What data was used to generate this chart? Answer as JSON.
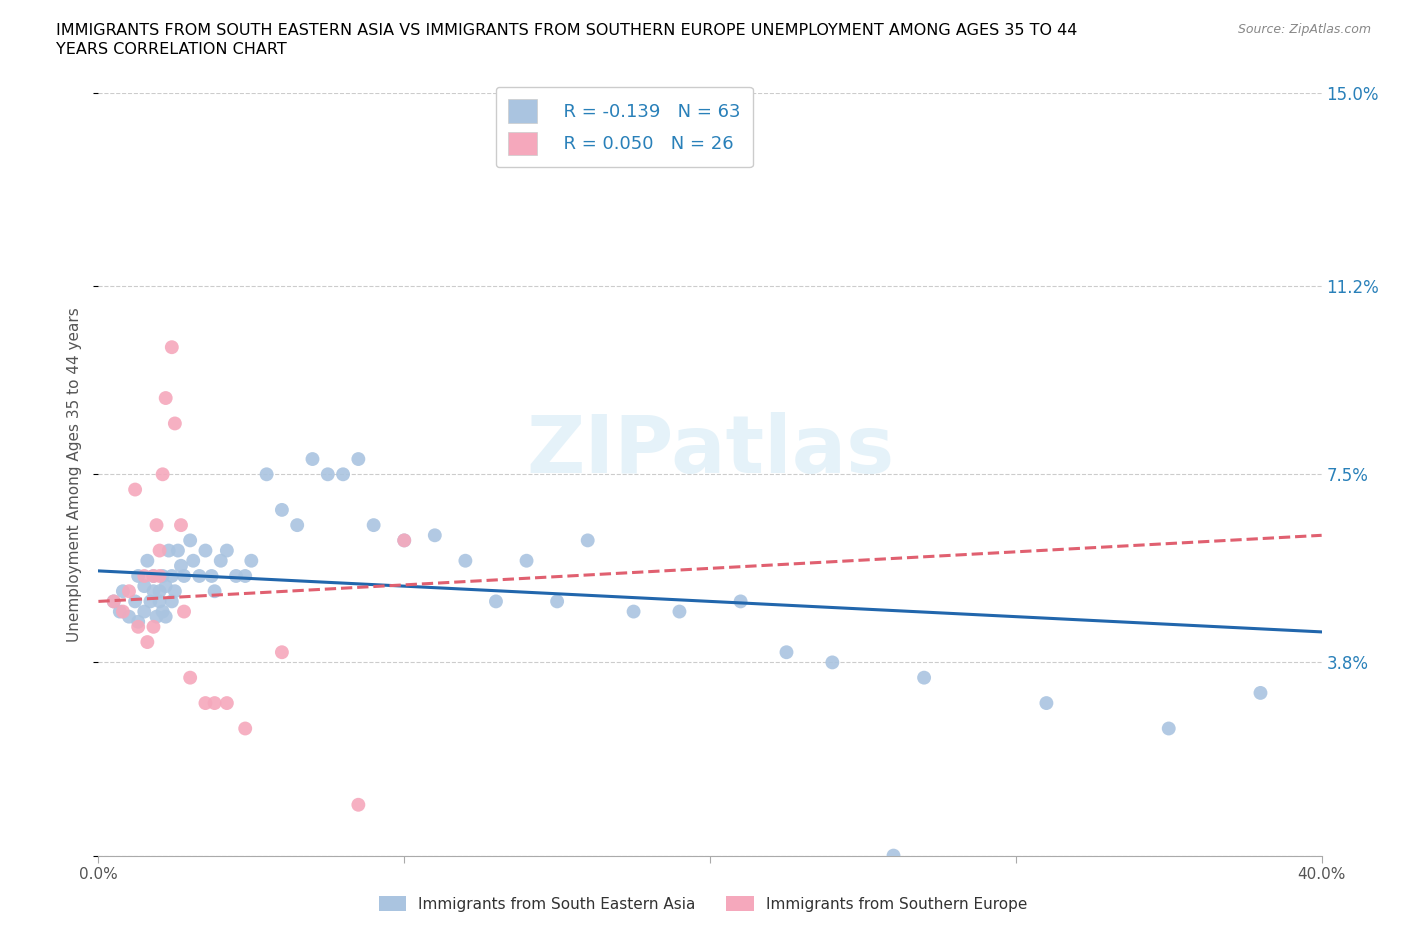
{
  "title_line1": "IMMIGRANTS FROM SOUTH EASTERN ASIA VS IMMIGRANTS FROM SOUTHERN EUROPE UNEMPLOYMENT AMONG AGES 35 TO 44",
  "title_line2": "YEARS CORRELATION CHART",
  "source": "Source: ZipAtlas.com",
  "ylabel": "Unemployment Among Ages 35 to 44 years",
  "xlim": [
    0.0,
    0.4
  ],
  "ylim": [
    0.0,
    0.15
  ],
  "yticks": [
    0.0,
    0.038,
    0.075,
    0.112,
    0.15
  ],
  "ytick_labels": [
    "",
    "3.8%",
    "7.5%",
    "11.2%",
    "15.0%"
  ],
  "xticks": [
    0.0,
    0.1,
    0.2,
    0.3,
    0.4
  ],
  "xtick_labels": [
    "0.0%",
    "",
    "",
    "",
    "40.0%"
  ],
  "legend_r1": "R = -0.139",
  "legend_n1": "N = 63",
  "legend_r2": "R = 0.050",
  "legend_n2": "N = 26",
  "series1_color": "#aac4e0",
  "series2_color": "#f5a8bc",
  "trendline1_color": "#2166ac",
  "trendline2_color": "#e06070",
  "watermark_color": "#d0e8f5",
  "series1_x": [
    0.005,
    0.007,
    0.008,
    0.01,
    0.012,
    0.013,
    0.013,
    0.015,
    0.015,
    0.016,
    0.017,
    0.018,
    0.018,
    0.019,
    0.02,
    0.02,
    0.021,
    0.021,
    0.022,
    0.022,
    0.023,
    0.024,
    0.024,
    0.025,
    0.026,
    0.027,
    0.028,
    0.03,
    0.031,
    0.033,
    0.035,
    0.037,
    0.038,
    0.04,
    0.042,
    0.045,
    0.048,
    0.05,
    0.055,
    0.06,
    0.065,
    0.07,
    0.075,
    0.08,
    0.085,
    0.09,
    0.1,
    0.11,
    0.12,
    0.13,
    0.14,
    0.15,
    0.16,
    0.175,
    0.19,
    0.21,
    0.225,
    0.24,
    0.26,
    0.27,
    0.31,
    0.35,
    0.38
  ],
  "series1_y": [
    0.05,
    0.048,
    0.052,
    0.047,
    0.05,
    0.055,
    0.046,
    0.053,
    0.048,
    0.058,
    0.05,
    0.052,
    0.055,
    0.047,
    0.05,
    0.052,
    0.048,
    0.055,
    0.053,
    0.047,
    0.06,
    0.055,
    0.05,
    0.052,
    0.06,
    0.057,
    0.055,
    0.062,
    0.058,
    0.055,
    0.06,
    0.055,
    0.052,
    0.058,
    0.06,
    0.055,
    0.055,
    0.058,
    0.075,
    0.068,
    0.065,
    0.078,
    0.075,
    0.075,
    0.078,
    0.065,
    0.062,
    0.063,
    0.058,
    0.05,
    0.058,
    0.05,
    0.062,
    0.048,
    0.048,
    0.05,
    0.04,
    0.038,
    0.0,
    0.035,
    0.03,
    0.025,
    0.032
  ],
  "series2_x": [
    0.005,
    0.008,
    0.01,
    0.012,
    0.013,
    0.015,
    0.016,
    0.018,
    0.018,
    0.019,
    0.02,
    0.02,
    0.021,
    0.022,
    0.024,
    0.025,
    0.027,
    0.028,
    0.03,
    0.035,
    0.038,
    0.042,
    0.048,
    0.06,
    0.085,
    0.1
  ],
  "series2_y": [
    0.05,
    0.048,
    0.052,
    0.072,
    0.045,
    0.055,
    0.042,
    0.055,
    0.045,
    0.065,
    0.055,
    0.06,
    0.075,
    0.09,
    0.1,
    0.085,
    0.065,
    0.048,
    0.035,
    0.03,
    0.03,
    0.03,
    0.025,
    0.04,
    0.01,
    0.062
  ],
  "trendline1_x0": 0.0,
  "trendline1_x1": 0.4,
  "trendline1_y0": 0.056,
  "trendline1_y1": 0.044,
  "trendline2_x0": 0.0,
  "trendline2_x1": 0.4,
  "trendline2_y0": 0.05,
  "trendline2_y1": 0.063
}
